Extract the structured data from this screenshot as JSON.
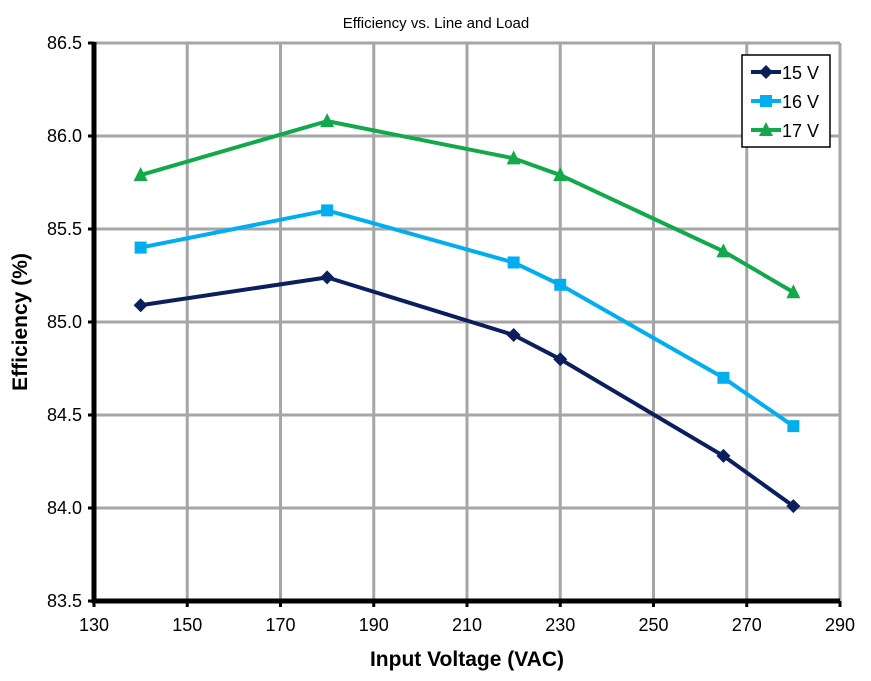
{
  "chart_data": {
    "type": "line",
    "title": "Efficiency vs. Line and Load",
    "xlabel": "Input Voltage (VAC)",
    "ylabel": "Efficiency (%)",
    "xlim": [
      130,
      290
    ],
    "ylim": [
      83.5,
      86.5
    ],
    "xticks": [
      130,
      150,
      170,
      190,
      210,
      230,
      250,
      270,
      290
    ],
    "yticks": [
      "83.5",
      "84.0",
      "84.5",
      "85.0",
      "85.5",
      "86.0",
      "86.5"
    ],
    "grid": true,
    "legend_position": "top-right",
    "x": [
      140,
      180,
      220,
      230,
      265,
      280
    ],
    "series": [
      {
        "name": "15 V",
        "color": "#0B1F5C",
        "marker": "diamond",
        "values": [
          85.09,
          85.24,
          84.93,
          84.8,
          84.28,
          84.01
        ]
      },
      {
        "name": "16 V",
        "color": "#00AEEF",
        "marker": "square",
        "values": [
          85.4,
          85.6,
          85.32,
          85.2,
          84.7,
          84.44
        ]
      },
      {
        "name": "17 V",
        "color": "#12A84B",
        "marker": "triangle",
        "values": [
          85.79,
          86.08,
          85.88,
          85.79,
          85.38,
          85.16
        ]
      }
    ]
  }
}
